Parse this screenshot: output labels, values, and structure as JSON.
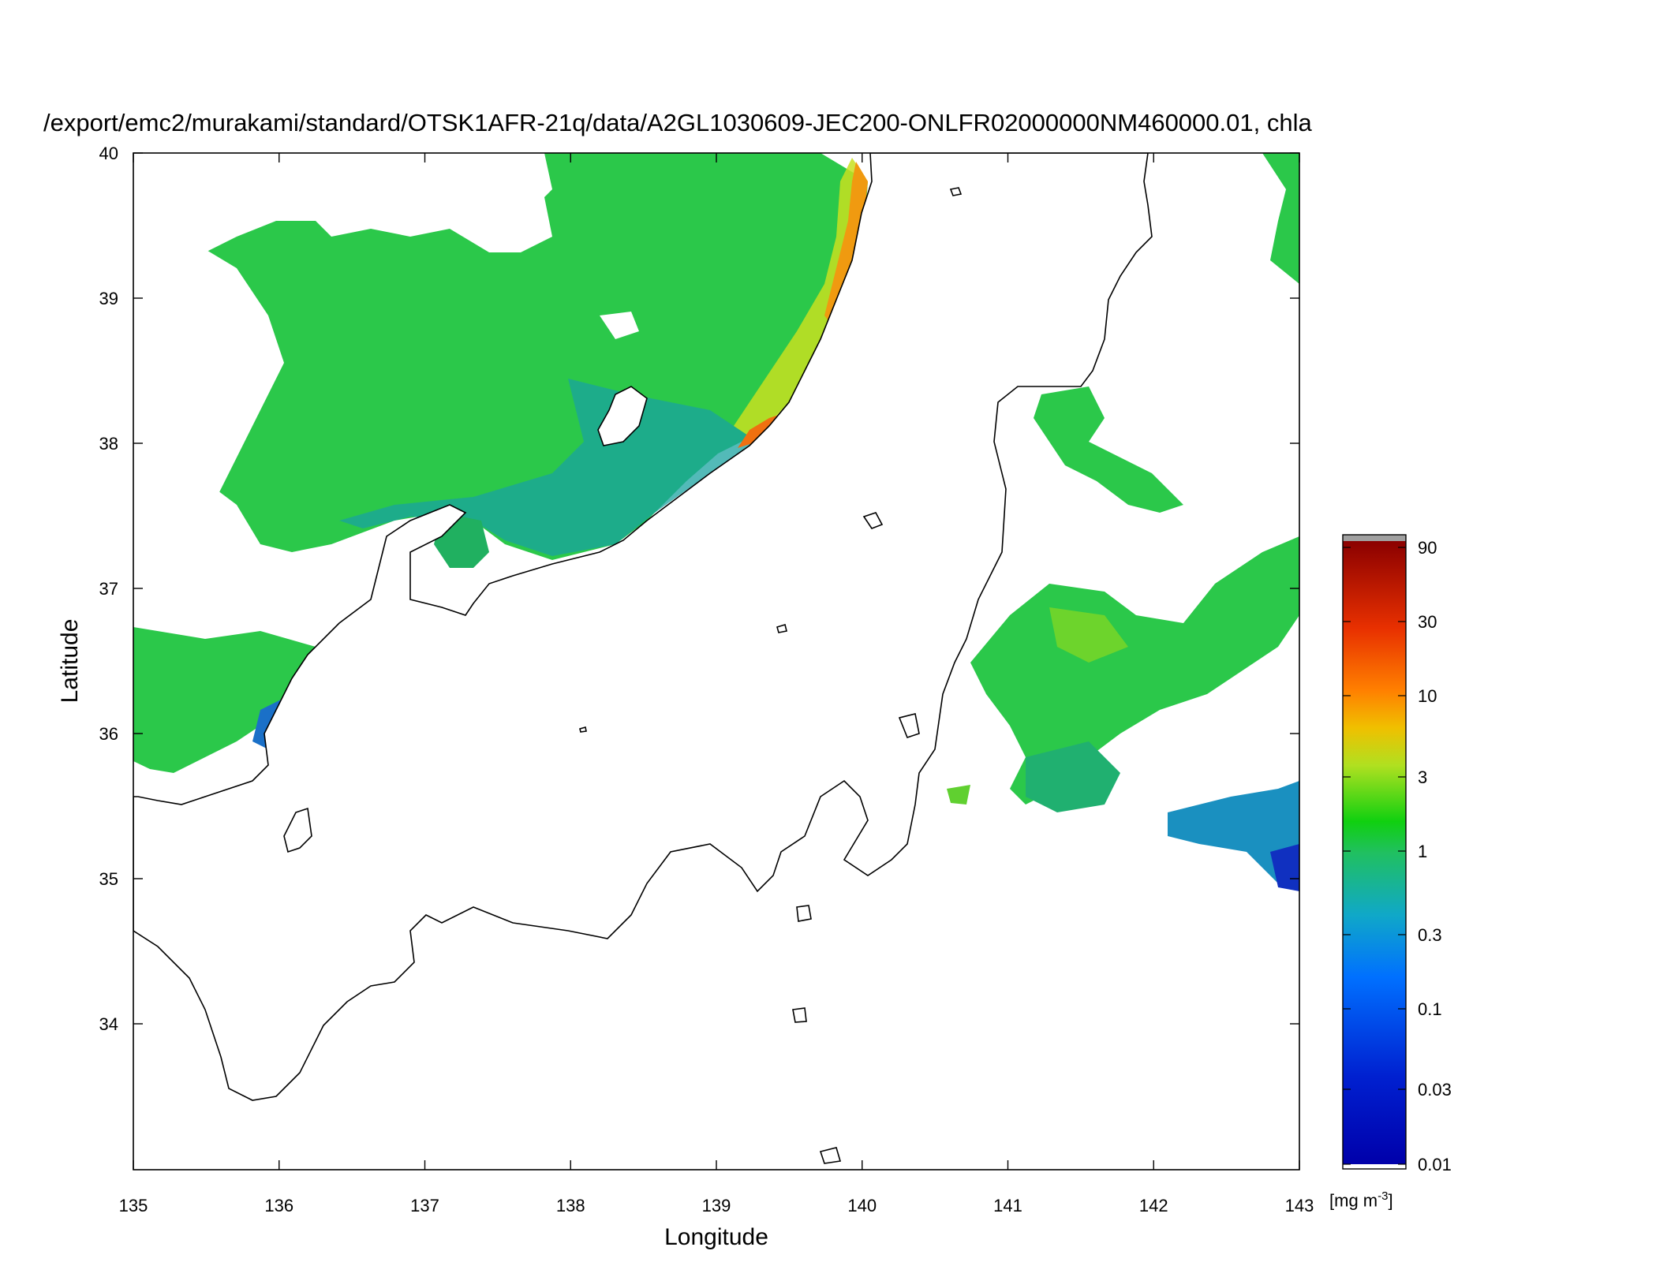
{
  "title": "/export/emc2/murakami/standard/OTSK1AFR-21q/data/A2GL1030609-JEC200-ONLFR02000000NM460000.01, chla",
  "xaxis": {
    "label": "Longitude",
    "ticks": [
      "135",
      "136",
      "137",
      "138",
      "139",
      "140",
      "141",
      "142",
      "143"
    ],
    "range": [
      135,
      143
    ]
  },
  "yaxis": {
    "label": "Latitude",
    "ticks": [
      "40",
      "39",
      "38",
      "37",
      "36",
      "35",
      "34"
    ],
    "range": [
      33,
      40
    ]
  },
  "colorbar": {
    "ticks": [
      "90",
      "30",
      "10",
      "3",
      "1",
      "0.3",
      "0.1",
      "0.03",
      "0.01"
    ],
    "unit_base": "[mg m",
    "unit_exp": "-3",
    "unit_close": "]",
    "scale": "log",
    "colors": [
      "#0000aa",
      "#0040ff",
      "#0090e0",
      "#20b090",
      "#20d020",
      "#90e020",
      "#e8d800",
      "#ff8000",
      "#e02000",
      "#8b0000"
    ]
  }
}
